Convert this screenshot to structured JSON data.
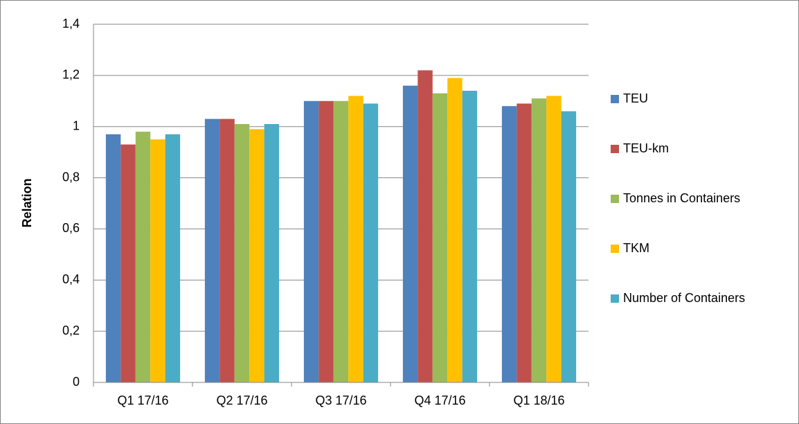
{
  "chart_data": {
    "type": "bar",
    "y_label": "Relation",
    "categories": [
      "Q1 17/16",
      "Q2 17/16",
      "Q3 17/16",
      "Q4 17/16",
      "Q1 18/16"
    ],
    "series": [
      {
        "name": "TEU",
        "color": "#4f81bd",
        "values": [
          0.97,
          1.03,
          1.1,
          1.16,
          1.08
        ]
      },
      {
        "name": "TEU-km",
        "color": "#c0504d",
        "values": [
          0.93,
          1.03,
          1.1,
          1.22,
          1.09
        ]
      },
      {
        "name": "Tonnes in Containers",
        "color": "#9bbb59",
        "values": [
          0.98,
          1.01,
          1.1,
          1.13,
          1.11
        ]
      },
      {
        "name": "TKM",
        "color": "#ffc000",
        "values": [
          0.95,
          0.99,
          1.12,
          1.19,
          1.12
        ]
      },
      {
        "name": "Number of Containers",
        "color": "#4bacc6",
        "values": [
          0.97,
          1.01,
          1.09,
          1.14,
          1.06
        ]
      }
    ],
    "ylim": [
      0,
      1.4
    ],
    "yticks": [
      0,
      {
        "value": 0.2,
        "label": "0,2"
      },
      {
        "value": 0.4,
        "label": "0,4"
      },
      {
        "value": 0.6,
        "label": "0,6"
      },
      {
        "value": 0.8,
        "label": "0,8"
      },
      1,
      {
        "value": 1.2,
        "label": "1,2"
      },
      {
        "value": 1.4,
        "label": "1,4"
      }
    ],
    "grid": true,
    "legend": "right"
  }
}
